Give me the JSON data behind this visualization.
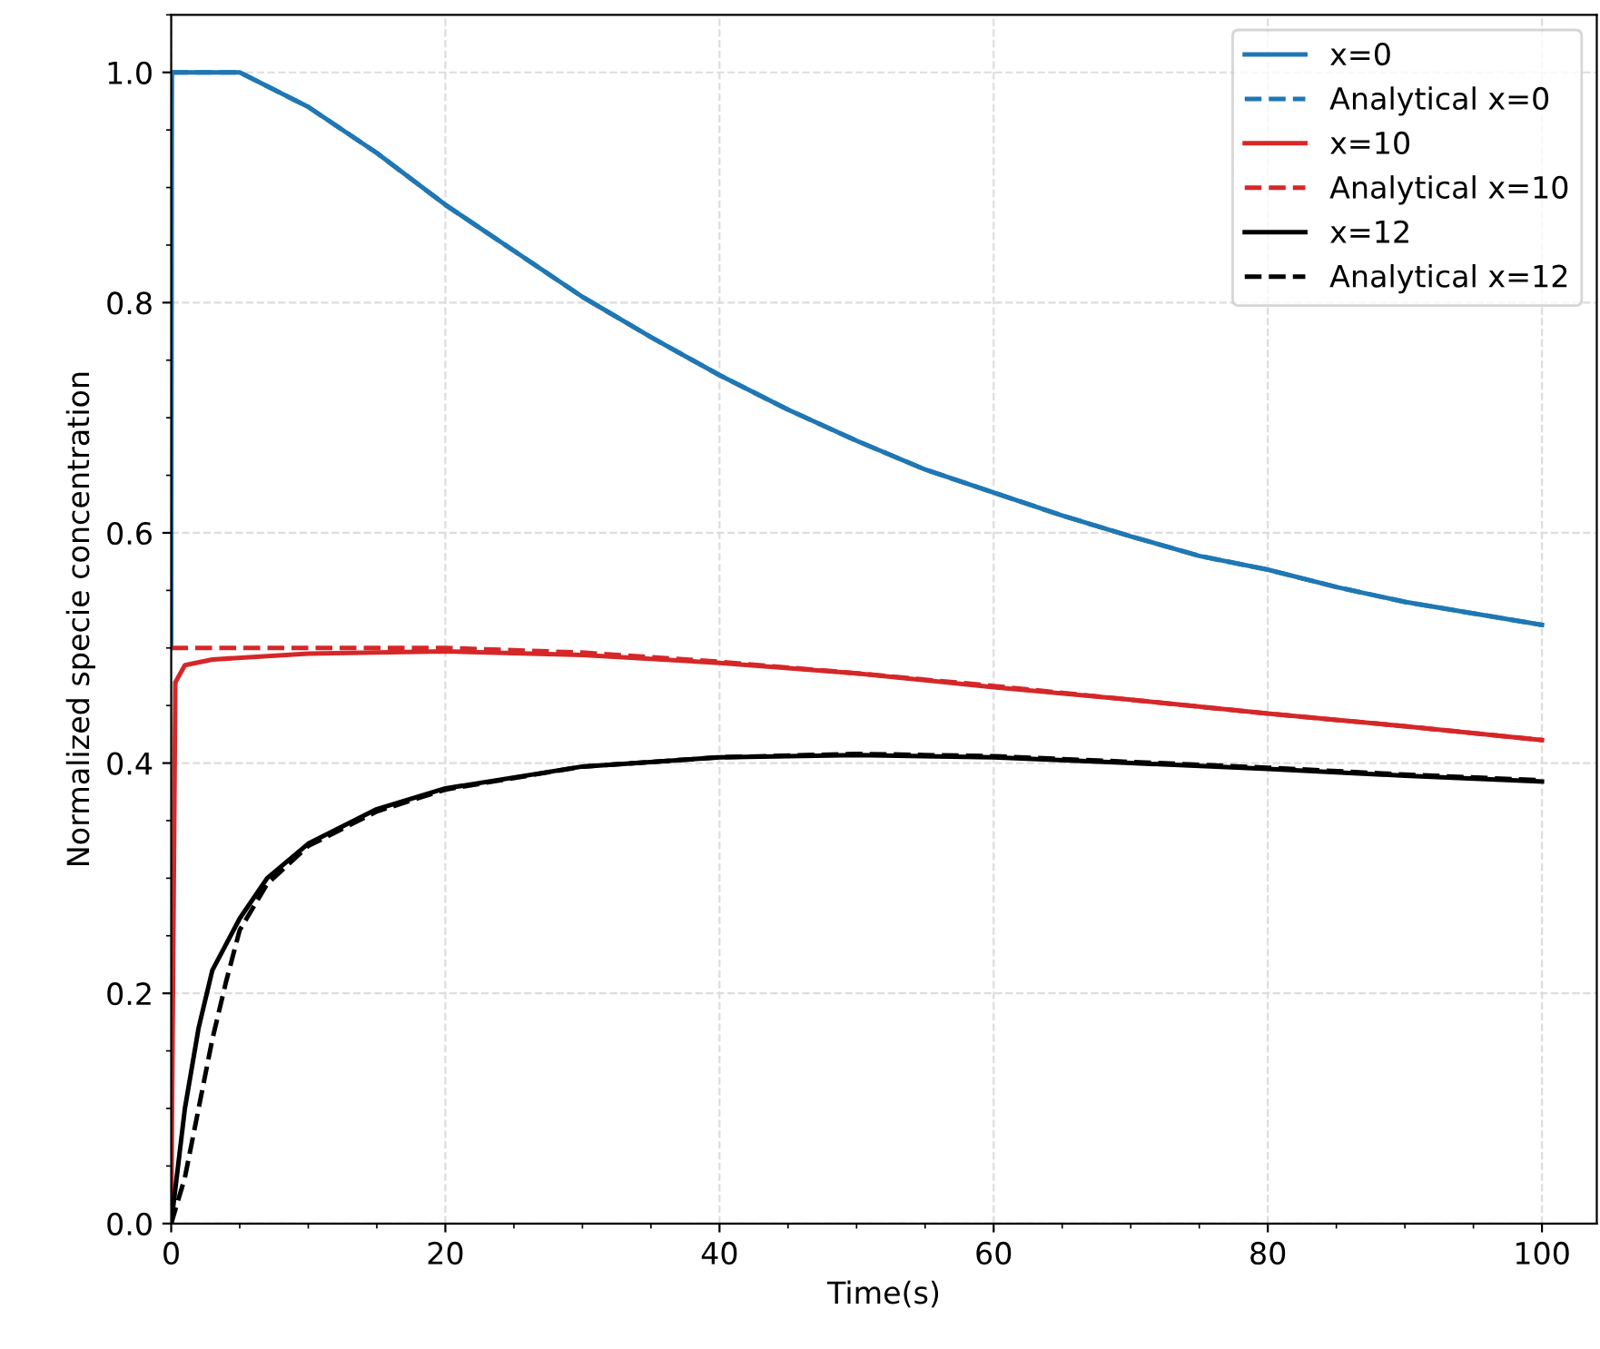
{
  "chart_data": {
    "type": "line",
    "xlabel": "Time(s)",
    "ylabel": "Normalized specie concentration",
    "xlim": [
      0,
      104
    ],
    "ylim": [
      0,
      1.05
    ],
    "xticks": [
      0,
      20,
      40,
      60,
      80,
      100
    ],
    "yticks": [
      {
        "value": 0,
        "label": "0.0"
      },
      0.2,
      0.4,
      0.6,
      0.8,
      {
        "value": 1,
        "label": "1.0"
      }
    ],
    "grid": true,
    "legend": "top right",
    "series": [
      {
        "name": "x=0",
        "color": "#1f77b4",
        "line_style": "solid",
        "x": [
          0,
          0.05,
          5,
          10,
          15,
          20,
          25,
          30,
          35,
          40,
          45,
          50,
          55,
          60,
          65,
          70,
          75,
          80,
          85,
          90,
          95,
          100
        ],
        "values": [
          0.5,
          1.0,
          1.0,
          0.97,
          0.93,
          0.885,
          0.845,
          0.805,
          0.77,
          0.737,
          0.707,
          0.68,
          0.655,
          0.635,
          0.615,
          0.597,
          0.58,
          0.568,
          0.553,
          0.54,
          0.53,
          0.52
        ]
      },
      {
        "name": "Analytical x=0",
        "color": "#1f77b4",
        "line_style": "dashed",
        "x": [
          0,
          5,
          10,
          15,
          20,
          25,
          30,
          35,
          40,
          45,
          50,
          55,
          60,
          65,
          70,
          75,
          80,
          85,
          90,
          95,
          100
        ],
        "values": [
          1.0,
          1.0,
          0.97,
          0.93,
          0.885,
          0.845,
          0.805,
          0.77,
          0.737,
          0.707,
          0.68,
          0.655,
          0.635,
          0.615,
          0.597,
          0.58,
          0.568,
          0.553,
          0.54,
          0.53,
          0.52
        ]
      },
      {
        "name": "x=10",
        "color": "#d62728",
        "line_style": "solid",
        "x": [
          0,
          0.3,
          1,
          3,
          10,
          20,
          30,
          40,
          50,
          60,
          70,
          80,
          90,
          100
        ],
        "values": [
          0,
          0.47,
          0.485,
          0.49,
          0.495,
          0.497,
          0.494,
          0.487,
          0.478,
          0.466,
          0.455,
          0.443,
          0.432,
          0.42
        ]
      },
      {
        "name": "Analytical x=10",
        "color": "#d62728",
        "line_style": "dashed",
        "x": [
          0,
          10,
          20,
          30,
          40,
          50,
          60,
          70,
          80,
          90,
          100
        ],
        "values": [
          0.5,
          0.5,
          0.5,
          0.496,
          0.488,
          0.478,
          0.467,
          0.455,
          0.443,
          0.432,
          0.42
        ]
      },
      {
        "name": "x=12",
        "color": "#000000",
        "line_style": "solid",
        "x": [
          0,
          1,
          2,
          3,
          5,
          7,
          10,
          15,
          20,
          30,
          40,
          50,
          60,
          70,
          80,
          90,
          100
        ],
        "values": [
          0,
          0.1,
          0.17,
          0.22,
          0.265,
          0.3,
          0.33,
          0.36,
          0.378,
          0.397,
          0.405,
          0.407,
          0.405,
          0.4,
          0.395,
          0.389,
          0.384
        ]
      },
      {
        "name": "Analytical x=12",
        "color": "#000000",
        "line_style": "dashed",
        "x": [
          0,
          1,
          2,
          3,
          4,
          5,
          7,
          10,
          15,
          20,
          30,
          40,
          50,
          60,
          70,
          80,
          90,
          100
        ],
        "values": [
          0,
          0.04,
          0.1,
          0.16,
          0.21,
          0.255,
          0.295,
          0.328,
          0.358,
          0.377,
          0.397,
          0.405,
          0.408,
          0.406,
          0.401,
          0.396,
          0.39,
          0.385
        ]
      }
    ]
  }
}
